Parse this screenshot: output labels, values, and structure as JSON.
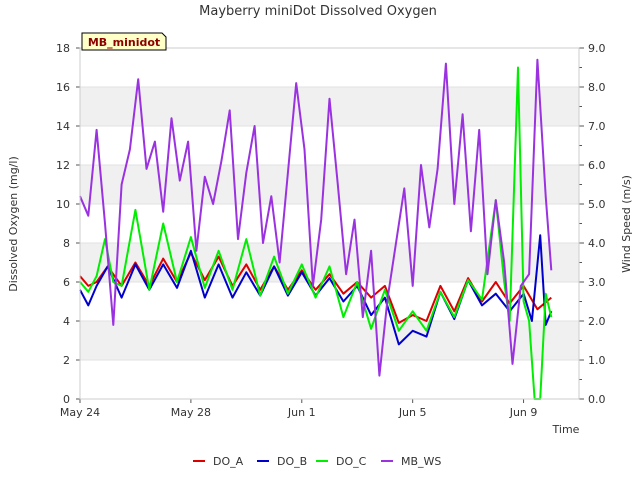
{
  "chart_data": {
    "type": "line",
    "title": "Mayberry miniDot Dissolved Oxygen",
    "xlabel": "Time",
    "ylabel": "Dissolved Oxygen (mg/l)",
    "y2label": "Wind Speed (m/s)",
    "annotation": "MB_minidot",
    "xlim": [
      0,
      18
    ],
    "ylim": [
      0,
      18
    ],
    "y2lim": [
      0,
      9
    ],
    "x_tick_positions": [
      0,
      4,
      8,
      12,
      16
    ],
    "x_tick_labels": [
      "May 24",
      "May 28",
      "Jun 1",
      "Jun 5",
      "Jun 9"
    ],
    "y_ticks": [
      "0",
      "2",
      "4",
      "6",
      "8",
      "10",
      "12",
      "14",
      "16",
      "18"
    ],
    "y2_ticks": [
      "0.0",
      "1.0",
      "2.0",
      "3.0",
      "4.0",
      "5.0",
      "6.0",
      "7.0",
      "8.0",
      "9.0"
    ],
    "grid": "horizontal bands",
    "legend_position": "bottom",
    "series": [
      {
        "name": "DO_A",
        "color": "#dd0000",
        "axis": "left",
        "x": [
          0,
          0.3,
          0.6,
          1.0,
          1.5,
          2.0,
          2.5,
          3.0,
          3.5,
          4.0,
          4.5,
          5.0,
          5.5,
          6.0,
          6.5,
          7.0,
          7.5,
          8.0,
          8.5,
          9.0,
          9.5,
          10.0,
          10.5,
          11.0,
          11.5,
          12.0,
          12.5,
          13.0,
          13.5,
          14.0,
          14.5,
          15.0,
          15.5,
          16.0,
          16.5,
          17.0
        ],
        "y": [
          6.3,
          5.8,
          6.0,
          6.8,
          5.8,
          7.0,
          5.8,
          7.2,
          6.0,
          7.5,
          6.1,
          7.3,
          5.8,
          6.9,
          5.6,
          6.8,
          5.6,
          6.6,
          5.6,
          6.4,
          5.4,
          6.0,
          5.2,
          5.8,
          3.9,
          4.3,
          4.0,
          5.8,
          4.5,
          6.2,
          5.0,
          6.0,
          4.9,
          5.8,
          4.6,
          5.2
        ]
      },
      {
        "name": "DO_B",
        "color": "#0000cc",
        "axis": "left",
        "x": [
          0,
          0.3,
          0.6,
          1.0,
          1.5,
          2.0,
          2.5,
          3.0,
          3.5,
          4.0,
          4.5,
          5.0,
          5.5,
          6.0,
          6.5,
          7.0,
          7.5,
          8.0,
          8.5,
          9.0,
          9.5,
          10.0,
          10.5,
          11.0,
          11.5,
          12.0,
          12.5,
          13.0,
          13.5,
          14.0,
          14.5,
          15.0,
          15.5,
          16.0,
          16.3,
          16.6,
          16.8,
          17.0
        ],
        "y": [
          5.6,
          4.8,
          5.8,
          6.8,
          5.2,
          6.9,
          5.6,
          6.9,
          5.7,
          7.6,
          5.2,
          6.9,
          5.2,
          6.5,
          5.3,
          6.8,
          5.3,
          6.5,
          5.3,
          6.2,
          5.0,
          5.8,
          4.3,
          5.2,
          2.8,
          3.5,
          3.2,
          5.5,
          4.1,
          6.1,
          4.8,
          5.4,
          4.5,
          5.4,
          4.0,
          8.4,
          3.8,
          4.5
        ]
      },
      {
        "name": "DO_C",
        "color": "#00ee00",
        "axis": "left",
        "x": [
          0,
          0.3,
          0.6,
          0.9,
          1.2,
          1.5,
          2.0,
          2.5,
          3.0,
          3.5,
          4.0,
          4.5,
          5.0,
          5.5,
          6.0,
          6.5,
          7.0,
          7.5,
          8.0,
          8.5,
          9.0,
          9.5,
          10.0,
          10.5,
          11.0,
          11.5,
          12.0,
          12.5,
          13.0,
          13.5,
          14.0,
          14.5,
          15.0,
          15.3,
          15.5,
          15.8,
          16.0,
          16.2,
          16.4,
          16.6,
          16.8,
          17.0
        ],
        "y": [
          6.0,
          5.5,
          6.3,
          8.2,
          6.0,
          5.8,
          9.7,
          5.6,
          9.0,
          6.0,
          8.3,
          5.7,
          7.6,
          5.6,
          8.2,
          5.3,
          7.3,
          5.4,
          6.9,
          5.2,
          6.8,
          4.2,
          6.0,
          3.6,
          5.6,
          3.5,
          4.5,
          3.5,
          5.5,
          4.2,
          6.1,
          5.1,
          10.2,
          6.0,
          4.0,
          17.0,
          5.0,
          4.0,
          0.0,
          0.0,
          5.4,
          4.2
        ]
      },
      {
        "name": "MB_WS",
        "color": "#9a32e0",
        "axis": "right",
        "x": [
          0,
          0.3,
          0.6,
          0.9,
          1.2,
          1.5,
          1.8,
          2.1,
          2.4,
          2.7,
          3.0,
          3.3,
          3.6,
          3.9,
          4.2,
          4.5,
          4.8,
          5.1,
          5.4,
          5.7,
          6.0,
          6.3,
          6.6,
          6.9,
          7.2,
          7.5,
          7.8,
          8.1,
          8.4,
          8.7,
          9.0,
          9.3,
          9.6,
          9.9,
          10.2,
          10.5,
          10.8,
          11.1,
          11.4,
          11.7,
          12.0,
          12.3,
          12.6,
          12.9,
          13.2,
          13.5,
          13.8,
          14.1,
          14.4,
          14.7,
          15.0,
          15.3,
          15.6,
          15.9,
          16.2,
          16.5,
          16.8,
          17.0
        ],
        "y": [
          5.2,
          4.7,
          6.9,
          4.5,
          1.9,
          5.5,
          6.4,
          8.2,
          5.9,
          6.6,
          4.8,
          7.2,
          5.6,
          6.6,
          3.8,
          5.7,
          5.0,
          6.1,
          7.4,
          4.1,
          5.8,
          7.0,
          4.0,
          5.2,
          3.5,
          5.8,
          8.1,
          6.4,
          2.9,
          4.6,
          7.7,
          5.5,
          3.2,
          4.6,
          2.1,
          3.8,
          0.6,
          2.6,
          4.0,
          5.4,
          2.9,
          6.0,
          4.4,
          5.9,
          8.6,
          5.0,
          7.3,
          4.3,
          6.9,
          3.2,
          5.1,
          3.5,
          0.9,
          2.9,
          3.2,
          8.7,
          5.2,
          3.3
        ]
      }
    ]
  }
}
